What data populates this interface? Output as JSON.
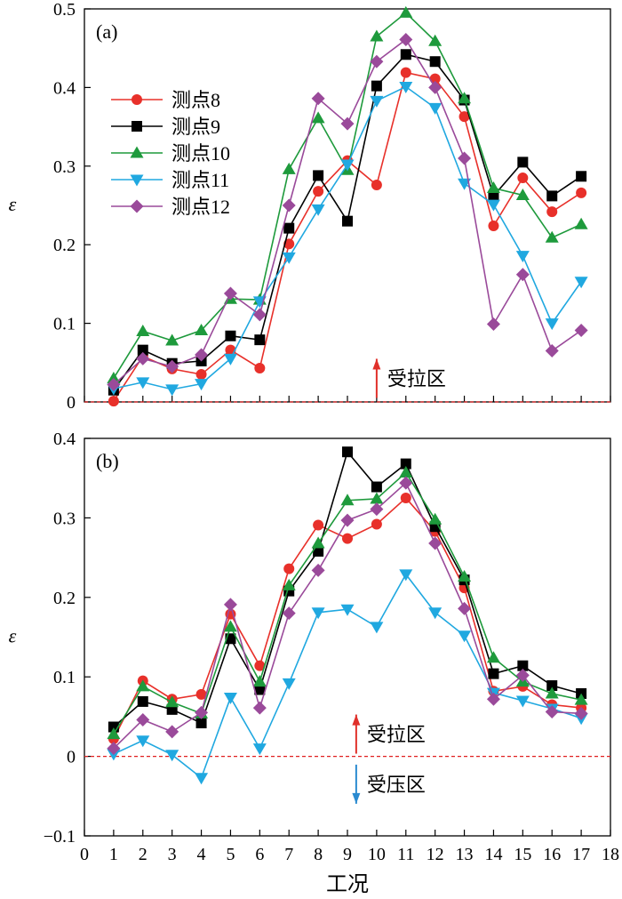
{
  "chart_data": [
    {
      "type": "line",
      "panel_label": "(a)",
      "ylabel": "ε",
      "xlabel": "",
      "xlim": [
        0,
        18
      ],
      "ylim": [
        0,
        0.5
      ],
      "yticks": [
        0,
        0.1,
        0.2,
        0.3,
        0.4,
        0.5
      ],
      "ytick_labels": [
        "0",
        "0.1",
        "0.2",
        "0.3",
        "0.4",
        "0.5"
      ],
      "x": [
        1,
        2,
        3,
        4,
        5,
        6,
        7,
        8,
        9,
        10,
        11,
        12,
        13,
        14,
        15,
        16,
        17
      ],
      "legend_position": "upper-left",
      "reference_line": {
        "y": 0,
        "color": "#e02020",
        "style": "dashed"
      },
      "annotations": [
        {
          "text": "受拉区",
          "arrow": "up",
          "arrow_color": "#e0302a",
          "x": 10,
          "y": 0.03
        }
      ],
      "series": [
        {
          "name": "测点8",
          "color": "#e8302a",
          "marker": "circle",
          "values": [
            0.001,
            0.058,
            0.042,
            0.035,
            0.066,
            0.043,
            0.201,
            0.268,
            0.307,
            0.276,
            0.419,
            0.411,
            0.363,
            0.224,
            0.285,
            0.242,
            0.266
          ]
        },
        {
          "name": "测点9",
          "color": "#000000",
          "marker": "square",
          "values": [
            0.015,
            0.066,
            0.049,
            0.052,
            0.084,
            0.079,
            0.221,
            0.288,
            0.23,
            0.402,
            0.442,
            0.433,
            0.384,
            0.262,
            0.305,
            0.262,
            0.287
          ]
        },
        {
          "name": "测点10",
          "color": "#1e9a3c",
          "marker": "triangle-up",
          "values": [
            0.03,
            0.09,
            0.078,
            0.091,
            0.131,
            0.13,
            0.296,
            0.361,
            0.295,
            0.465,
            0.495,
            0.459,
            0.386,
            0.272,
            0.263,
            0.209,
            0.226
          ]
        },
        {
          "name": "测点11",
          "color": "#20a8e0",
          "marker": "triangle-down",
          "values": [
            0.017,
            0.025,
            0.016,
            0.023,
            0.055,
            0.128,
            0.184,
            0.245,
            0.302,
            0.383,
            0.401,
            0.374,
            0.278,
            0.251,
            0.186,
            0.1,
            0.153
          ]
        },
        {
          "name": "测点12",
          "color": "#9a4a9a",
          "marker": "diamond",
          "values": [
            0.022,
            0.055,
            0.045,
            0.06,
            0.138,
            0.111,
            0.25,
            0.386,
            0.354,
            0.433,
            0.461,
            0.4,
            0.31,
            0.099,
            0.162,
            0.065,
            0.091
          ]
        }
      ]
    },
    {
      "type": "line",
      "panel_label": "(b)",
      "ylabel": "ε",
      "xlabel": "工况",
      "xlim": [
        0,
        18
      ],
      "ylim": [
        -0.1,
        0.4
      ],
      "xticks": [
        0,
        1,
        2,
        3,
        4,
        5,
        6,
        7,
        8,
        9,
        10,
        11,
        12,
        13,
        14,
        15,
        16,
        17,
        18
      ],
      "xtick_labels": [
        "0",
        "1",
        "2",
        "3",
        "4",
        "5",
        "6",
        "7",
        "8",
        "9",
        "10",
        "11",
        "12",
        "13",
        "14",
        "15",
        "16",
        "17",
        "18"
      ],
      "yticks": [
        -0.1,
        0,
        0.1,
        0.2,
        0.3,
        0.4
      ],
      "ytick_labels": [
        "−0.1",
        "0",
        "0.1",
        "0.2",
        "0.3",
        "0.4"
      ],
      "x": [
        1,
        2,
        3,
        4,
        5,
        6,
        7,
        8,
        9,
        10,
        11,
        12,
        13,
        14,
        15,
        16,
        17
      ],
      "reference_line": {
        "y": 0,
        "color": "#e02020",
        "style": "dashed"
      },
      "annotations": [
        {
          "text": "受拉区",
          "arrow": "up",
          "arrow_color": "#e0302a",
          "x": 9.3,
          "y": 0.028
        },
        {
          "text": "受压区",
          "arrow": "down",
          "arrow_color": "#2a8ad0",
          "x": 9.3,
          "y": -0.035
        }
      ],
      "series": [
        {
          "name": "测点8",
          "color": "#e8302a",
          "marker": "circle",
          "values": [
            0.022,
            0.095,
            0.072,
            0.078,
            0.179,
            0.114,
            0.236,
            0.291,
            0.274,
            0.292,
            0.325,
            0.283,
            0.212,
            0.082,
            0.088,
            0.065,
            0.061
          ]
        },
        {
          "name": "测点9",
          "color": "#000000",
          "marker": "square",
          "values": [
            0.037,
            0.069,
            0.059,
            0.042,
            0.148,
            0.084,
            0.208,
            0.258,
            0.383,
            0.339,
            0.368,
            0.289,
            0.222,
            0.104,
            0.114,
            0.089,
            0.079
          ]
        },
        {
          "name": "测点10",
          "color": "#1e9a3c",
          "marker": "triangle-up",
          "values": [
            0.028,
            0.088,
            0.068,
            0.054,
            0.163,
            0.094,
            0.215,
            0.268,
            0.322,
            0.324,
            0.357,
            0.298,
            0.226,
            0.124,
            0.094,
            0.079,
            0.071
          ]
        },
        {
          "name": "测点11",
          "color": "#20a8e0",
          "marker": "triangle-down",
          "values": [
            0.003,
            0.02,
            0.002,
            -0.027,
            0.074,
            0.01,
            0.092,
            0.181,
            0.185,
            0.163,
            0.229,
            0.181,
            0.152,
            0.08,
            0.07,
            0.06,
            0.048
          ]
        },
        {
          "name": "测点12",
          "color": "#9a4a9a",
          "marker": "diamond",
          "values": [
            0.01,
            0.046,
            0.031,
            0.055,
            0.191,
            0.061,
            0.18,
            0.234,
            0.297,
            0.311,
            0.344,
            0.268,
            0.186,
            0.072,
            0.102,
            0.056,
            0.054
          ]
        }
      ]
    }
  ]
}
